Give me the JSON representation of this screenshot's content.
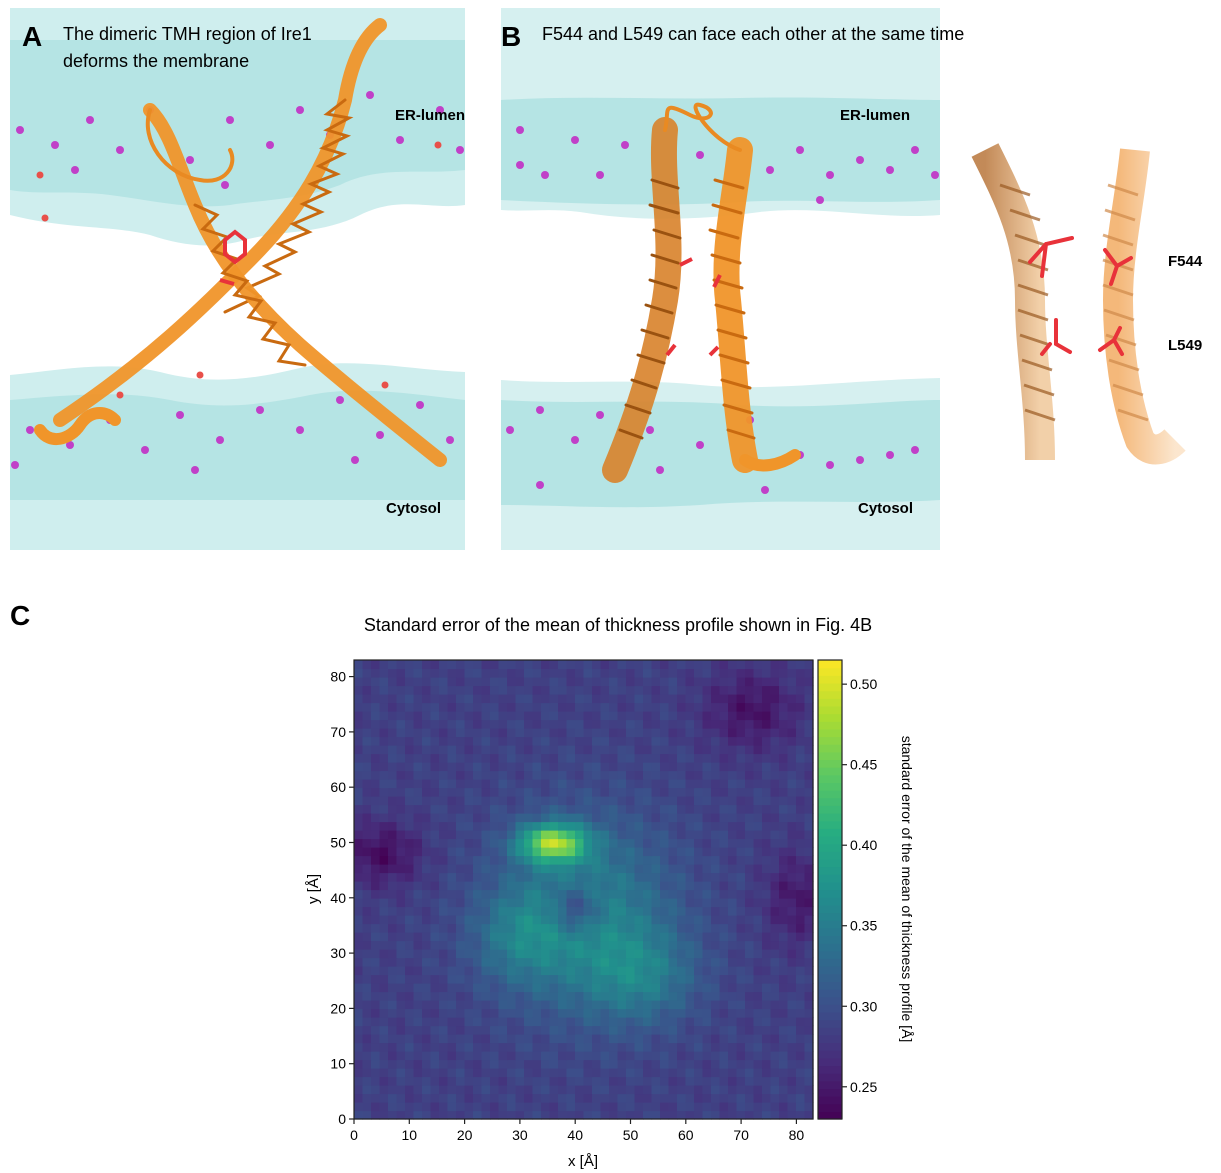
{
  "panel_a": {
    "letter": "A",
    "title_line1": "The dimeric TMH region of Ire1",
    "title_line2": "deforms the membrane",
    "label_top": "ER-lumen",
    "label_bottom": "Cytosol"
  },
  "panel_b": {
    "letter": "B",
    "title": "F544 and L549 can face each other at the same time",
    "label_top": "ER-lumen",
    "label_bottom": "Cytosol",
    "residue_1": "F544",
    "residue_2": "L549"
  },
  "panel_c": {
    "letter": "C",
    "title": "Standard error of the mean of thickness profile shown in Fig. 4B"
  },
  "colors": {
    "membrane": "#7fd6d6",
    "helix": "#f0952a",
    "residue": "#e8323a",
    "phosphate": "#c040c8"
  },
  "chart_data": {
    "type": "heatmap",
    "title": "Standard error of the mean of thickness profile shown in Fig. 4B",
    "xlabel": "x [Å]",
    "ylabel": "y [Å]",
    "xlim": [
      0,
      83
    ],
    "ylim": [
      0,
      83
    ],
    "xticks": [
      "0",
      "10",
      "20",
      "30",
      "40",
      "50",
      "60",
      "70",
      "80"
    ],
    "yticks": [
      "0",
      "10",
      "20",
      "30",
      "40",
      "50",
      "60",
      "70",
      "80"
    ],
    "colorbar": {
      "label": "standard error of the mean of thickness profile [Å]",
      "range": [
        0.23,
        0.515
      ],
      "ticks": [
        "0.25",
        "0.30",
        "0.35",
        "0.40",
        "0.45",
        "0.50"
      ],
      "colormap": "viridis"
    },
    "background_level": 0.285,
    "features": [
      {
        "x": 42,
        "y": 37,
        "sx": 11,
        "sy": 12,
        "amp": 0.075
      },
      {
        "x": 36,
        "y": 50,
        "sx": 4.2,
        "sy": 2.4,
        "amp": 0.17
      },
      {
        "x": 52,
        "y": 26,
        "sx": 7,
        "sy": 6,
        "amp": 0.05
      },
      {
        "x": 30,
        "y": 33,
        "sx": 6,
        "sy": 6,
        "amp": 0.045
      },
      {
        "x": 40,
        "y": 38,
        "sx": 3,
        "sy": 3,
        "amp": -0.06
      },
      {
        "x": 5,
        "y": 48,
        "sx": 5,
        "sy": 4,
        "amp": -0.045
      },
      {
        "x": 72,
        "y": 74,
        "sx": 6,
        "sy": 5,
        "amp": -0.04
      },
      {
        "x": 80,
        "y": 40,
        "sx": 4,
        "sy": 6,
        "amp": -0.035
      }
    ]
  }
}
